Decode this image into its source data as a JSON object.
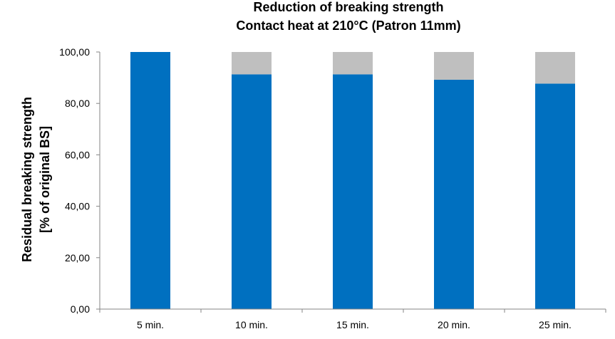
{
  "chart_data": {
    "type": "bar",
    "stacked": true,
    "title_lines": [
      "Reduction of breaking strength",
      "Contact heat at 210°C (Patron 11mm)"
    ],
    "xlabel": "",
    "ylabel_lines": [
      "Residual breaking strength",
      "[% of original BS]"
    ],
    "categories": [
      "5 min.",
      "10 min.",
      "15 min.",
      "20 min.",
      "25 min."
    ],
    "y_tick_labels": [
      "0,00",
      "20,00",
      "40,00",
      "60,00",
      "80,00",
      "100,00"
    ],
    "ylim": [
      0,
      100
    ],
    "grid": false,
    "legend": "none",
    "series": [
      {
        "values": [
          100,
          91.3,
          91.3,
          89.2,
          87.7
        ],
        "color": "#0070C0"
      },
      {
        "values": [
          0,
          8.7,
          8.7,
          10.8,
          12.3
        ],
        "color": "#BFBFBF"
      }
    ],
    "axis_color": "#868686"
  }
}
